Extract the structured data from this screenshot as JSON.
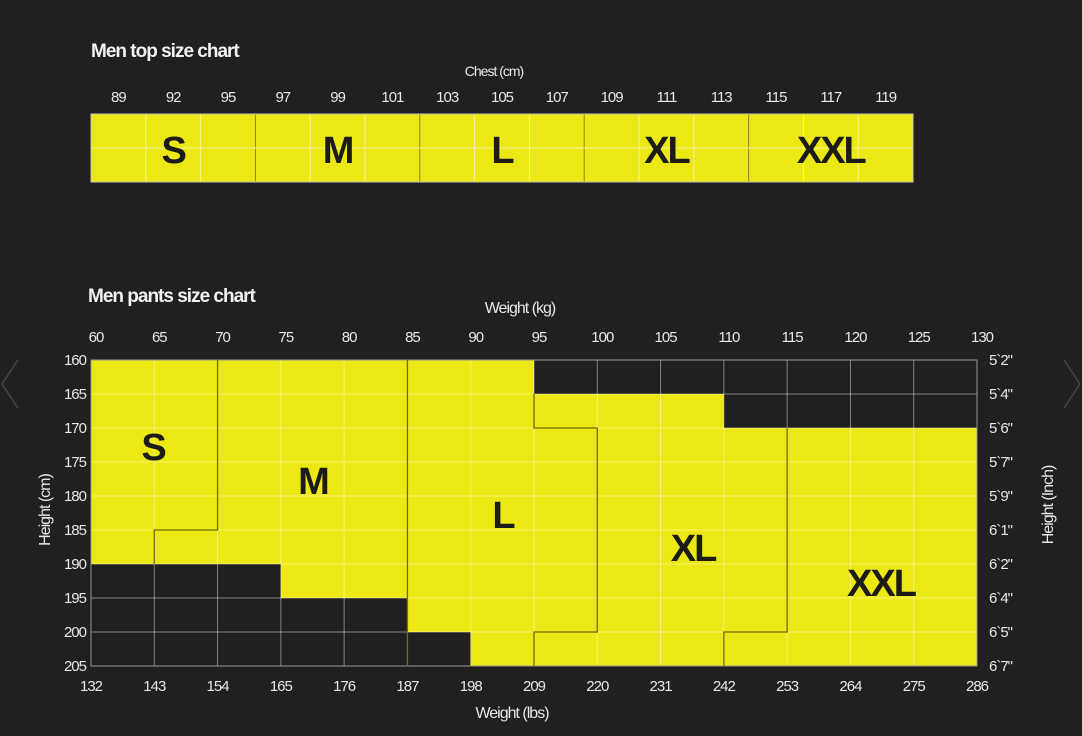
{
  "colors": {
    "background": "#211f20",
    "fill": "#ebe813",
    "empty": "#211f20"
  },
  "chart_data": [
    {
      "type": "table",
      "title": "Men top size chart",
      "xlabel": "Chest (cm)",
      "categories": [
        "89",
        "92",
        "95",
        "97",
        "99",
        "101",
        "103",
        "105",
        "107",
        "109",
        "111",
        "113",
        "115",
        "117",
        "119"
      ],
      "sizes": [
        {
          "label": "S",
          "columns": [
            "89",
            "92",
            "95"
          ]
        },
        {
          "label": "M",
          "columns": [
            "97",
            "99",
            "101"
          ]
        },
        {
          "label": "L",
          "columns": [
            "103",
            "105",
            "107"
          ]
        },
        {
          "label": "XL",
          "columns": [
            "109",
            "111",
            "113"
          ]
        },
        {
          "label": "XXL",
          "columns": [
            "115",
            "117",
            "119"
          ]
        }
      ]
    },
    {
      "type": "heatmap",
      "title": "Men pants size chart",
      "xlabel_top": "Weight (kg)",
      "xlabel_bottom": "Weight (lbs)",
      "ylabel_left": "Height (cm)",
      "ylabel_right": "Height (Inch)",
      "x_kg": [
        "60",
        "65",
        "70",
        "75",
        "80",
        "85",
        "90",
        "95",
        "100",
        "105",
        "110",
        "115",
        "120",
        "125",
        "130"
      ],
      "x_lbs": [
        "132",
        "143",
        "154",
        "165",
        "176",
        "187",
        "198",
        "209",
        "220",
        "231",
        "242",
        "253",
        "264",
        "275",
        "286"
      ],
      "y_cm": [
        "160",
        "165",
        "170",
        "175",
        "180",
        "185",
        "190",
        "195",
        "200",
        "205"
      ],
      "y_inch": [
        "5`2\"",
        "5`4\"",
        "5`6\"",
        "5`7\"",
        "5`9\"",
        "6`1\"",
        "6`2\"",
        "6`4\"",
        "6`5\"",
        "6`7\""
      ],
      "xlim_kg": [
        60,
        130
      ],
      "ylim_cm": [
        160,
        205
      ],
      "empty_cells": [
        {
          "height_cm": [
            160,
            165
          ],
          "weight_kg": [
            95,
            130
          ]
        },
        {
          "height_cm": [
            165,
            170
          ],
          "weight_kg": [
            110,
            130
          ]
        },
        {
          "height_cm": [
            190,
            195
          ],
          "weight_kg": [
            60,
            75
          ]
        },
        {
          "height_cm": [
            195,
            200
          ],
          "weight_kg": [
            60,
            85
          ]
        },
        {
          "height_cm": [
            200,
            205
          ],
          "weight_kg": [
            60,
            90
          ]
        }
      ],
      "sizes": [
        {
          "label": "S"
        },
        {
          "label": "M"
        },
        {
          "label": "L"
        },
        {
          "label": "XL"
        },
        {
          "label": "XXL"
        }
      ]
    }
  ]
}
